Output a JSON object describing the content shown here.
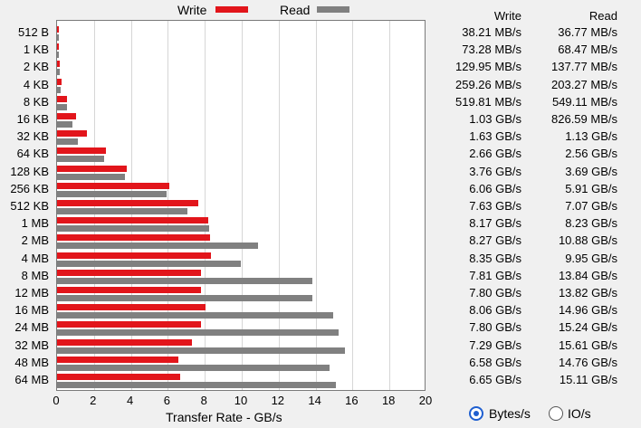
{
  "legend": {
    "write_label": "Write",
    "read_label": "Read",
    "write_color": "#e2151b",
    "read_color": "#808080"
  },
  "columns": {
    "write_header": "Write",
    "read_header": "Read"
  },
  "chart_data": {
    "type": "bar",
    "orientation": "horizontal",
    "xlabel": "Transfer Rate - GB/s",
    "xlim": [
      0,
      20
    ],
    "xticks": [
      "0",
      "2",
      "4",
      "6",
      "8",
      "10",
      "12",
      "14",
      "16",
      "18",
      "20"
    ],
    "grid": true,
    "legend_position": "top",
    "categories": [
      "512 B",
      "1 KB",
      "2 KB",
      "4 KB",
      "8 KB",
      "16 KB",
      "32 KB",
      "64 KB",
      "128 KB",
      "256 KB",
      "512 KB",
      "1 MB",
      "2 MB",
      "4 MB",
      "8 MB",
      "12 MB",
      "16 MB",
      "24 MB",
      "32 MB",
      "48 MB",
      "64 MB"
    ],
    "series": [
      {
        "name": "Write",
        "values": [
          0.03821,
          0.07328,
          0.12995,
          0.25926,
          0.51981,
          1.03,
          1.63,
          2.66,
          3.76,
          6.06,
          7.63,
          8.17,
          8.27,
          8.35,
          7.81,
          7.8,
          8.06,
          7.8,
          7.29,
          6.58,
          6.65
        ],
        "labels": [
          "38.21 MB/s",
          "73.28 MB/s",
          "129.95 MB/s",
          "259.26 MB/s",
          "519.81 MB/s",
          "1.03 GB/s",
          "1.63 GB/s",
          "2.66 GB/s",
          "3.76 GB/s",
          "6.06 GB/s",
          "7.63 GB/s",
          "8.17 GB/s",
          "8.27 GB/s",
          "8.35 GB/s",
          "7.81 GB/s",
          "7.80 GB/s",
          "8.06 GB/s",
          "7.80 GB/s",
          "7.29 GB/s",
          "6.58 GB/s",
          "6.65 GB/s"
        ]
      },
      {
        "name": "Read",
        "values": [
          0.03677,
          0.06847,
          0.13777,
          0.20327,
          0.54911,
          0.82659,
          1.13,
          2.56,
          3.69,
          5.91,
          7.07,
          8.23,
          10.88,
          9.95,
          13.84,
          13.82,
          14.96,
          15.24,
          15.61,
          14.76,
          15.11
        ],
        "labels": [
          "36.77 MB/s",
          "68.47 MB/s",
          "137.77 MB/s",
          "203.27 MB/s",
          "549.11 MB/s",
          "826.59 MB/s",
          "1.13 GB/s",
          "2.56 GB/s",
          "3.69 GB/s",
          "5.91 GB/s",
          "7.07 GB/s",
          "8.23 GB/s",
          "10.88 GB/s",
          "9.95 GB/s",
          "13.84 GB/s",
          "13.82 GB/s",
          "14.96 GB/s",
          "15.24 GB/s",
          "15.61 GB/s",
          "14.76 GB/s",
          "15.11 GB/s"
        ]
      }
    ]
  },
  "display_mode": {
    "bytes_label": "Bytes/s",
    "io_label": "IO/s",
    "selected": "Bytes/s"
  }
}
